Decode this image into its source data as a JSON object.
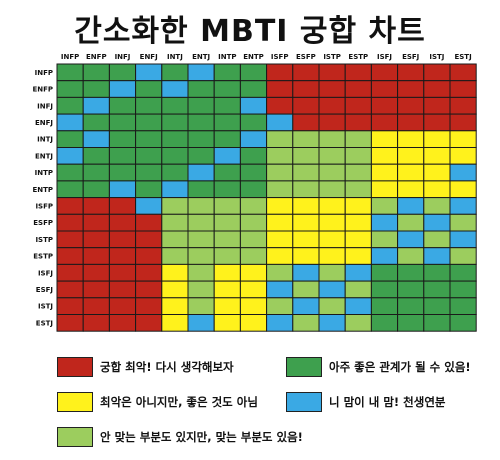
{
  "title": "간소화한 MBTI 궁합 차트",
  "types": [
    "INFP",
    "ENFP",
    "INFJ",
    "ENFJ",
    "INTJ",
    "ENTJ",
    "INTP",
    "ENTP",
    "ISFP",
    "ESFP",
    "ISTP",
    "ESTP",
    "ISFJ",
    "ESFJ",
    "ISTJ",
    "ESTJ"
  ],
  "colors": {
    "R": "#c0261c",
    "G": "#3ea04e",
    "Y": "#fff21c",
    "B": "#3aa9e4",
    "L": "#9ccd5e"
  },
  "chart_data": {
    "type": "heatmap",
    "rows": [
      "INFP",
      "ENFP",
      "INFJ",
      "ENFJ",
      "INTJ",
      "ENTJ",
      "INTP",
      "ENTP",
      "ISFP",
      "ESFP",
      "ISTP",
      "ESTP",
      "ISFJ",
      "ESFJ",
      "ISTJ",
      "ESTJ"
    ],
    "columns": [
      "INFP",
      "ENFP",
      "INFJ",
      "ENFJ",
      "INTJ",
      "ENTJ",
      "INTP",
      "ENTP",
      "ISFP",
      "ESFP",
      "ISTP",
      "ESTP",
      "ISFJ",
      "ESFJ",
      "ISTJ",
      "ESTJ"
    ],
    "cells": [
      "GGGBGBGGRRRRRRRR",
      "GGBGBGGGRRRRRRRR",
      "GBGGGGGBRRRRRRRR",
      "BGGGGGGGBRRRRRRR",
      "GBGGGGGBLLLLYYYY",
      "BGGGGGBGLLLLYYYY",
      "GGGGGBGGLLLLYYYB",
      "GGBGBGGGLLLLYYYY",
      "RRRBLLLLYYYYLBLB",
      "RRRRLLLLYYYYBLBL",
      "RRRRLLLLYYYYLBLB",
      "RRRRLLLLYYYYBLBL",
      "RRRRYLYYLBLBGGGG",
      "RRRRYLYYBLBLGGGG",
      "RRRRYLYYLBLBGGGG",
      "RRRRYBYYBLBLGGGG"
    ]
  },
  "legend": [
    {
      "color": "R",
      "label": "궁합 최악! 다시 생각해보자"
    },
    {
      "color": "G",
      "label": "아주 좋은 관계가 될 수 있음!"
    },
    {
      "color": "Y",
      "label": "최악은 아니지만, 좋은 것도 아님"
    },
    {
      "color": "B",
      "label": "니 맘이 내 맘! 천생연분"
    },
    {
      "color": "L",
      "label": "안 맞는 부분도 있지만, 맞는 부분도 있음!"
    }
  ]
}
